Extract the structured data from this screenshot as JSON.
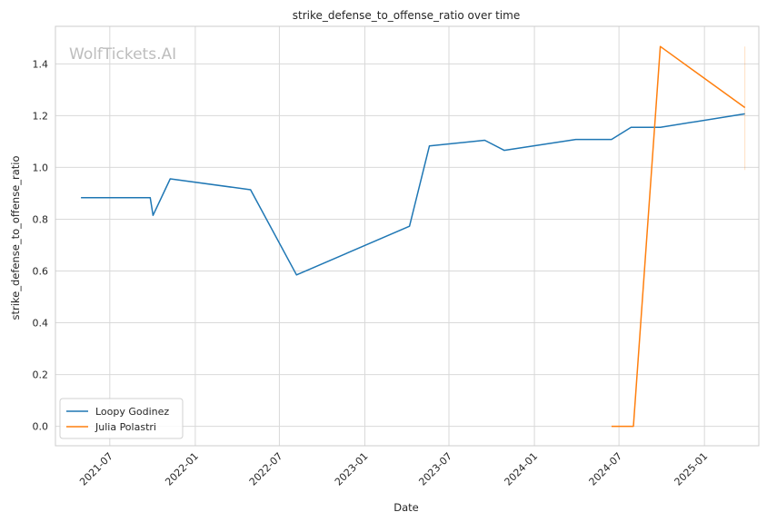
{
  "chart_data": {
    "type": "line",
    "title": "strike_defense_to_offense_ratio over time",
    "xlabel": "Date",
    "ylabel": "strike_defense_to_offense_ratio",
    "watermark": "WolfTickets.AI",
    "x_ticks": [
      "2021-07",
      "2022-01",
      "2022-07",
      "2023-01",
      "2023-07",
      "2024-01",
      "2024-07",
      "2025-01"
    ],
    "y_ticks": [
      "0.0",
      "0.2",
      "0.4",
      "0.6",
      "0.8",
      "1.0",
      "1.2",
      "1.4"
    ],
    "xlim": [
      "2021-03-06",
      "2025-04-28"
    ],
    "ylim": [
      -0.075,
      1.545
    ],
    "grid": true,
    "legend_position": "lower-left",
    "series": [
      {
        "name": "Loopy Godinez",
        "color": "#1f77b4",
        "points": [
          {
            "x": "2021-04-30",
            "y": 0.883
          },
          {
            "x": "2021-09-26",
            "y": 0.883
          },
          {
            "x": "2021-10-02",
            "y": 0.815
          },
          {
            "x": "2021-11-08",
            "y": 0.956
          },
          {
            "x": "2022-04-30",
            "y": 0.914
          },
          {
            "x": "2022-08-07",
            "y": 0.585
          },
          {
            "x": "2023-04-07",
            "y": 0.773
          },
          {
            "x": "2023-05-20",
            "y": 1.083
          },
          {
            "x": "2023-09-16",
            "y": 1.105
          },
          {
            "x": "2023-10-28",
            "y": 1.066
          },
          {
            "x": "2024-03-30",
            "y": 1.108
          },
          {
            "x": "2024-06-15",
            "y": 1.108
          },
          {
            "x": "2024-07-27",
            "y": 1.155
          },
          {
            "x": "2024-09-28",
            "y": 1.155
          },
          {
            "x": "2025-03-29",
            "y": 1.207
          }
        ]
      },
      {
        "name": "Julia Polastri",
        "color": "#ff7f0e",
        "points": [
          {
            "x": "2024-06-15",
            "y": 0.0
          },
          {
            "x": "2024-08-01",
            "y": 0.0
          },
          {
            "x": "2024-09-28",
            "y": 1.467
          },
          {
            "x": "2025-03-29",
            "y": 1.231
          }
        ]
      }
    ]
  }
}
